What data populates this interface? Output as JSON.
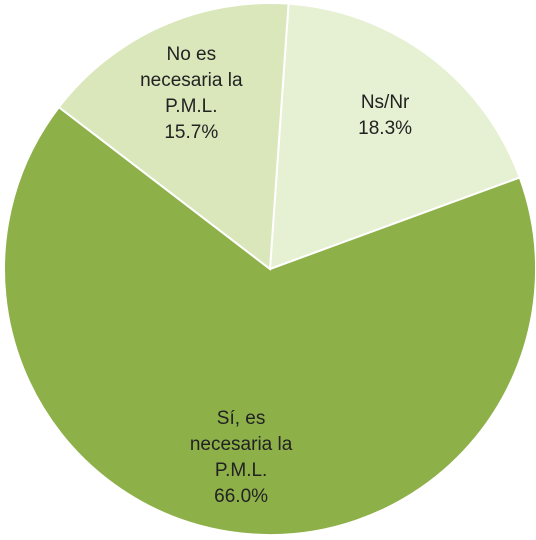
{
  "chart_data": {
    "type": "pie",
    "categories": [
      "Ns/Nr",
      "Sí, es necesaria la P.M.L.",
      "No es necesaria la P.M.L."
    ],
    "values": [
      18.3,
      66.0,
      15.7
    ],
    "value_labels": [
      "18.3%",
      "66.0%",
      "15.7%"
    ],
    "colors": [
      "#e6f0d2",
      "#8db049",
      "#d9e7bb"
    ]
  }
}
